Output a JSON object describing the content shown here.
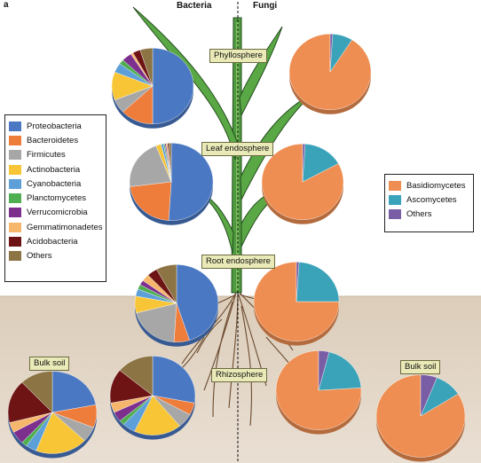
{
  "panel_label": "a",
  "headers": {
    "bacteria": "Bacteria",
    "fungi": "Fungi"
  },
  "compartments": {
    "phyllosphere": "Phyllosphere",
    "leaf_endosphere": "Leaf endosphere",
    "root_endosphere": "Root endosphere",
    "rhizosphere": "Rhizosphere",
    "bulk_soil": "Bulk soil"
  },
  "bacteria_legend": [
    {
      "name": "Proteobacteria",
      "color": "#4a78c2"
    },
    {
      "name": "Bacteroidetes",
      "color": "#ee7d3b"
    },
    {
      "name": "Firmicutes",
      "color": "#a7a7a7"
    },
    {
      "name": "Actinobacteria",
      "color": "#f7c535"
    },
    {
      "name": "Cyanobacteria",
      "color": "#5d9fd8"
    },
    {
      "name": "Planctomycetes",
      "color": "#4fae50"
    },
    {
      "name": "Verrucomicrobia",
      "color": "#7d2f8e"
    },
    {
      "name": "Gemmatimonadetes",
      "color": "#f6b66c"
    },
    {
      "name": "Acidobacteria",
      "color": "#6e1414"
    },
    {
      "name": "Others",
      "color": "#8c7444"
    }
  ],
  "fungi_legend": [
    {
      "name": "Basidiomycetes",
      "color": "#ef8e52"
    },
    {
      "name": "Ascomycetes",
      "color": "#3aa3b9"
    },
    {
      "name": "Others",
      "color": "#7a5ea5"
    }
  ],
  "chart_data": [
    {
      "type": "pie",
      "group": "Bacteria",
      "compartment": "Phyllosphere",
      "categories": [
        "Proteobacteria",
        "Bacteroidetes",
        "Firmicutes",
        "Actinobacteria",
        "Cyanobacteria",
        "Planctomycetes",
        "Verrucomicrobia",
        "Gemmatimonadetes",
        "Acidobacteria",
        "Others"
      ],
      "values": [
        50,
        13,
        6,
        12,
        4,
        2,
        4,
        1,
        3,
        5
      ]
    },
    {
      "type": "pie",
      "group": "Bacteria",
      "compartment": "Leaf endosphere",
      "categories": [
        "Proteobacteria",
        "Bacteroidetes",
        "Firmicutes",
        "Actinobacteria",
        "Cyanobacteria",
        "Planctomycetes",
        "Verrucomicrobia",
        "Gemmatimonadetes",
        "Acidobacteria",
        "Others"
      ],
      "values": [
        51,
        22,
        21,
        2,
        1,
        0.5,
        0.5,
        0.5,
        0.5,
        1
      ]
    },
    {
      "type": "pie",
      "group": "Bacteria",
      "compartment": "Root endosphere",
      "categories": [
        "Proteobacteria",
        "Bacteroidetes",
        "Firmicutes",
        "Actinobacteria",
        "Cyanobacteria",
        "Planctomycetes",
        "Verrucomicrobia",
        "Gemmatimonadetes",
        "Acidobacteria",
        "Others"
      ],
      "values": [
        45,
        6,
        20,
        7,
        3,
        2,
        2,
        3,
        4,
        8
      ]
    },
    {
      "type": "pie",
      "group": "Bacteria",
      "compartment": "Rhizosphere",
      "categories": [
        "Proteobacteria",
        "Bacteroidetes",
        "Firmicutes",
        "Actinobacteria",
        "Cyanobacteria",
        "Planctomycetes",
        "Verrucomicrobia",
        "Gemmatimonadetes",
        "Acidobacteria",
        "Others"
      ],
      "values": [
        28,
        5,
        6,
        18,
        5,
        2,
        4,
        4,
        14,
        14
      ]
    },
    {
      "type": "pie",
      "group": "Bacteria",
      "compartment": "Bulk soil",
      "categories": [
        "Proteobacteria",
        "Bacteroidetes",
        "Firmicutes",
        "Actinobacteria",
        "Cyanobacteria",
        "Planctomycetes",
        "Verrucomicrobia",
        "Gemmatimonadetes",
        "Acidobacteria",
        "Others"
      ],
      "values": [
        22,
        9,
        6,
        19,
        4,
        2,
        5,
        4,
        17,
        12
      ]
    },
    {
      "type": "pie",
      "group": "Fungi",
      "compartment": "Phyllosphere",
      "categories": [
        "Basidiomycetes",
        "Ascomycetes",
        "Others"
      ],
      "values": [
        91,
        8,
        1
      ]
    },
    {
      "type": "pie",
      "group": "Fungi",
      "compartment": "Leaf endosphere",
      "categories": [
        "Basidiomycetes",
        "Ascomycetes",
        "Others"
      ],
      "values": [
        83,
        16,
        1
      ]
    },
    {
      "type": "pie",
      "group": "Fungi",
      "compartment": "Root endosphere",
      "categories": [
        "Basidiomycetes",
        "Ascomycetes",
        "Others"
      ],
      "values": [
        75,
        24,
        1
      ]
    },
    {
      "type": "pie",
      "group": "Fungi",
      "compartment": "Rhizosphere",
      "categories": [
        "Basidiomycetes",
        "Ascomycetes",
        "Others"
      ],
      "values": [
        76,
        20,
        4
      ]
    },
    {
      "type": "pie",
      "group": "Fungi",
      "compartment": "Bulk soil",
      "categories": [
        "Basidiomycetes",
        "Ascomycetes",
        "Others"
      ],
      "values": [
        84,
        10,
        6
      ]
    }
  ]
}
